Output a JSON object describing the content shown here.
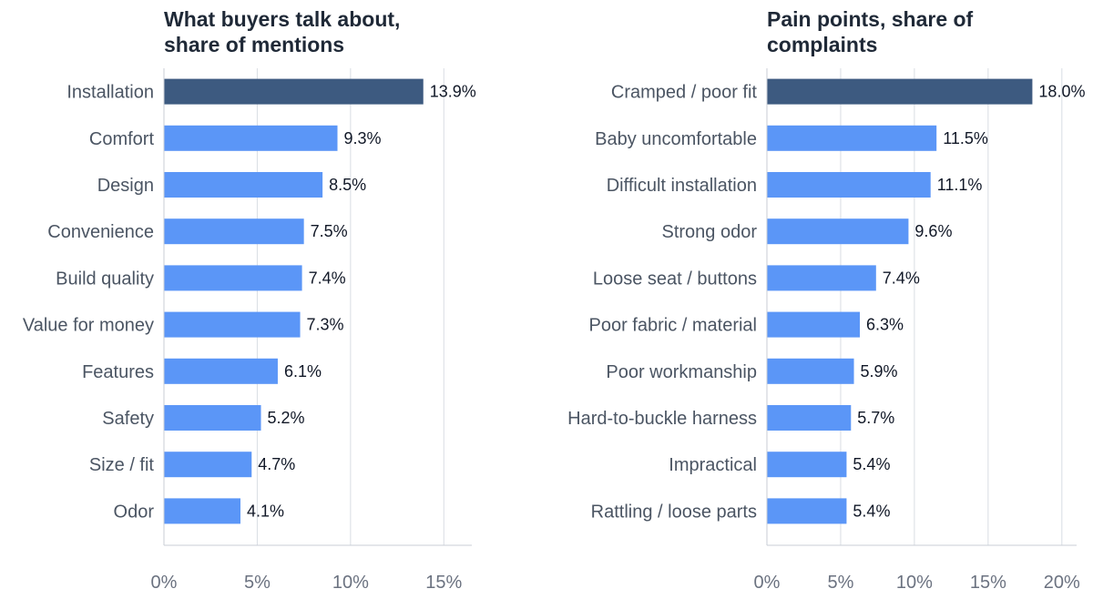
{
  "chart_data": [
    {
      "type": "bar",
      "orientation": "horizontal",
      "title": [
        "What buyers talk about,",
        "share of mentions"
      ],
      "categories": [
        "Installation",
        "Comfort",
        "Design",
        "Convenience",
        "Build quality",
        "Value for money",
        "Features",
        "Safety",
        "Size / fit",
        "Odor"
      ],
      "values": [
        13.9,
        9.3,
        8.5,
        7.5,
        7.4,
        7.3,
        6.1,
        5.2,
        4.7,
        4.1
      ],
      "value_labels": [
        "13.9%",
        "9.3%",
        "8.5%",
        "7.5%",
        "7.4%",
        "7.3%",
        "6.1%",
        "5.2%",
        "4.7%",
        "4.1%"
      ],
      "xlim": [
        0,
        16.5
      ],
      "xticks": [
        0,
        5,
        10,
        15
      ],
      "xtick_labels": [
        "0%",
        "5%",
        "10%",
        "15%"
      ],
      "grid": true,
      "colors": {
        "highlight": "#3d5a80",
        "bar": "#5b96f7"
      }
    },
    {
      "type": "bar",
      "orientation": "horizontal",
      "title": [
        "Pain points, share of",
        "complaints"
      ],
      "categories": [
        "Cramped / poor fit",
        "Baby uncomfortable",
        "Difficult installation",
        "Strong odor",
        "Loose seat / buttons",
        "Poor fabric / material",
        "Poor workmanship",
        "Hard-to-buckle harness",
        "Impractical",
        "Rattling / loose parts"
      ],
      "values": [
        18.0,
        11.5,
        11.1,
        9.6,
        7.4,
        6.3,
        5.9,
        5.7,
        5.4,
        5.4
      ],
      "value_labels": [
        "18.0%",
        "11.5%",
        "11.1%",
        "9.6%",
        "7.4%",
        "6.3%",
        "5.9%",
        "5.7%",
        "5.4%",
        "5.4%"
      ],
      "xlim": [
        0,
        21
      ],
      "xticks": [
        0,
        5,
        10,
        15,
        20
      ],
      "xtick_labels": [
        "0%",
        "5%",
        "10%",
        "15%",
        "20%"
      ],
      "grid": true,
      "colors": {
        "highlight": "#3d5a80",
        "bar": "#5b96f7"
      }
    }
  ]
}
